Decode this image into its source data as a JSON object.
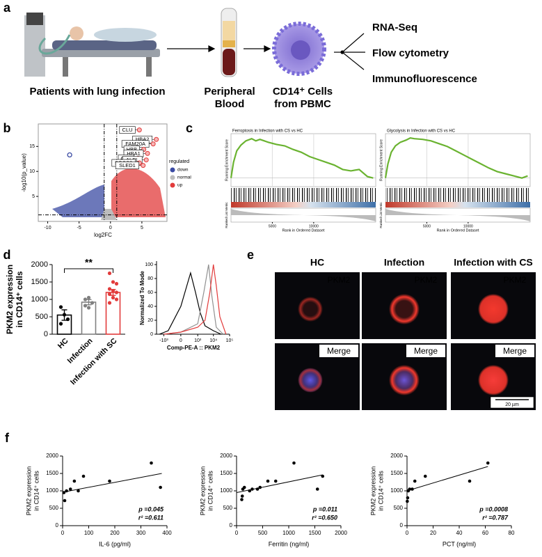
{
  "panel_a": {
    "label": "a",
    "steps": [
      [
        "Patients with lung infection"
      ],
      [
        "Peripheral",
        "Blood"
      ],
      [
        "CD14⁺ Cells",
        "from PBMC"
      ]
    ],
    "outputs": [
      "RNA-Seq",
      "Flow cytometry",
      "Immunofluorescence"
    ]
  },
  "volcano": {
    "label": "b",
    "type": "scatter",
    "xlabel": "log2FC",
    "ylabel": "-log10(p_value)",
    "xlim": [
      -11.5,
      9
    ],
    "ylim": [
      0,
      19.5
    ],
    "xticks": [
      -10,
      -5,
      0,
      5
    ],
    "yticks": [
      5,
      10,
      15
    ],
    "thresholds": {
      "x": [
        -1,
        1
      ],
      "y": 1.3
    },
    "legend": {
      "title": "regulated",
      "items": [
        {
          "name": "down",
          "color": "#3b4ba3"
        },
        {
          "name": "normal",
          "color": "#bdbdbd"
        },
        {
          "name": "up",
          "color": "#e23b3b"
        }
      ]
    },
    "genes": [
      {
        "name": "CLU",
        "x": 4.6,
        "y": 18.3
      },
      {
        "name": "HBA2",
        "x": 7.3,
        "y": 16.4
      },
      {
        "name": "FAM20A",
        "x": 6.8,
        "y": 15.5
      },
      {
        "name": "HBB",
        "x": 5.3,
        "y": 14.4
      },
      {
        "name": "HBA1",
        "x": 5.9,
        "y": 13.6
      },
      {
        "name": "ADM",
        "x": 4.4,
        "y": 12.6
      },
      {
        "name": "ALPL",
        "x": 5.7,
        "y": 12.3
      },
      {
        "name": "SOCS3",
        "x": 4.6,
        "y": 11.7
      },
      {
        "name": "SLED1",
        "x": 5.2,
        "y": 11.2
      }
    ],
    "outlier": {
      "x": -6.5,
      "y": 13.3
    }
  },
  "gsea": {
    "label": "c",
    "type": "line",
    "color": "#6ab330",
    "ylabel": "Running Enrichment Score",
    "y2label": "Ranked List Metric",
    "xlabel": "Rank in Ordered Dataset",
    "xlim": [
      0,
      17500
    ],
    "ylim": [
      -0.12,
      0.62
    ],
    "xticks": [
      5000,
      10000
    ],
    "plots": [
      {
        "title": "Ferroptosis in Infection with CS vs HC",
        "x": [
          0,
          300,
          700,
          1200,
          1800,
          2500,
          3000,
          3500,
          4500,
          5500,
          6500,
          7500,
          8500,
          9500,
          10500,
          11500,
          12500,
          13500,
          14500,
          15500,
          16500,
          17200
        ],
        "y": [
          0,
          0.22,
          0.38,
          0.46,
          0.52,
          0.55,
          0.52,
          0.54,
          0.5,
          0.47,
          0.45,
          0.4,
          0.36,
          0.3,
          0.26,
          0.22,
          0.18,
          0.12,
          0.1,
          0.12,
          0.02,
          0.0
        ]
      },
      {
        "title": "Glycolysis in Infection with CS vs HC",
        "x": [
          0,
          300,
          700,
          1200,
          1800,
          2500,
          3000,
          3500,
          4500,
          5500,
          6500,
          7500,
          8500,
          9500,
          10500,
          11500,
          12500,
          13500,
          14500,
          15500,
          16500,
          17200
        ],
        "y": [
          0,
          0.2,
          0.36,
          0.45,
          0.5,
          0.53,
          0.56,
          0.55,
          0.54,
          0.52,
          0.48,
          0.44,
          0.38,
          0.32,
          0.26,
          0.2,
          0.14,
          0.09,
          0.06,
          0.03,
          0.0,
          0.03
        ]
      }
    ]
  },
  "bar": {
    "label": "d",
    "type": "bar",
    "ylabel": [
      "PKM2 expression",
      "in CD14⁺ cells"
    ],
    "categories": [
      "HC",
      "Infection",
      "Infection with SC"
    ],
    "values": [
      550,
      920,
      1200
    ],
    "errors": [
      150,
      75,
      85
    ],
    "colors": [
      "#000000",
      "#808080",
      "#e23b3b"
    ],
    "points": [
      [
        780,
        560,
        430,
        300
      ],
      [
        1000,
        1050,
        900,
        820,
        760
      ],
      [
        1750,
        1500,
        1450,
        1300,
        1250,
        1200,
        1150,
        1050,
        1000,
        900
      ]
    ],
    "ylim": [
      0,
      2000
    ],
    "yticks": [
      0,
      500,
      1000,
      1500,
      2000
    ],
    "significance": "**"
  },
  "histogram": {
    "type": "line",
    "xlabel": "Comp-PE-A :: PKM2",
    "ylabel": "Normalized To Mode",
    "xlim": [
      -3000,
      100000
    ],
    "ylim": [
      0,
      105
    ],
    "yticks": [
      0,
      20,
      40,
      60,
      80,
      100
    ],
    "xticks": [
      {
        "value": -1000,
        "label": "-10³"
      },
      0,
      {
        "value": 1000,
        "label": "10³"
      },
      {
        "value": 10000,
        "label": "10⁴"
      },
      {
        "value": 100000,
        "label": "10⁵"
      }
    ],
    "series": [
      {
        "color": "#000000",
        "x": [
          -2000,
          -500,
          0,
          300,
          700,
          1500,
          3000,
          10000,
          30000
        ],
        "y": [
          0,
          5,
          40,
          88,
          60,
          30,
          12,
          5,
          0
        ]
      },
      {
        "color": "#909090",
        "x": [
          -1000,
          0,
          1000,
          2500,
          5000,
          8000,
          15000,
          40000
        ],
        "y": [
          0,
          3,
          15,
          60,
          100,
          55,
          10,
          0
        ]
      },
      {
        "color": "#e23b3b",
        "x": [
          -1000,
          0,
          1000,
          3000,
          6000,
          10000,
          15000,
          25000,
          60000
        ],
        "y": [
          0,
          3,
          10,
          20,
          60,
          100,
          70,
          25,
          0
        ]
      }
    ]
  },
  "images": {
    "label": "e",
    "columns": [
      "HC",
      "Infection",
      "Infection with CS"
    ],
    "rows": [
      "PKM2",
      "Merge"
    ],
    "scale_bar": "20 µm"
  },
  "correlations": {
    "label": "f",
    "type": "scatter",
    "ylabel": [
      "PKM2 expression",
      "in CD14⁺ cells"
    ],
    "ylim": [
      0,
      2000
    ],
    "yticks": [
      0,
      500,
      1000,
      1500,
      2000
    ],
    "plots": [
      {
        "xlabel": "IL-6 (pg/ml)",
        "xlim": [
          0,
          400
        ],
        "xticks": [
          0,
          100,
          200,
          300,
          400
        ],
        "x": [
          5,
          8,
          15,
          30,
          45,
          60,
          80,
          180,
          340,
          375
        ],
        "y": [
          950,
          720,
          1000,
          1050,
          1280,
          1000,
          1420,
          1280,
          1800,
          1100
        ],
        "fit": {
          "x": [
            0,
            380
          ],
          "y": [
            960,
            1500
          ]
        },
        "p": "p =0.045",
        "r2": "r² =0.611"
      },
      {
        "xlabel": "Ferritin (ng/ml)",
        "xlim": [
          0,
          2000
        ],
        "xticks": [
          0,
          500,
          1000,
          1500,
          2000
        ],
        "x": [
          100,
          110,
          120,
          150,
          250,
          300,
          400,
          450,
          600,
          750,
          1100,
          1550,
          1650
        ],
        "y": [
          750,
          850,
          1050,
          1100,
          1000,
          1050,
          1050,
          1100,
          1280,
          1280,
          1800,
          1050,
          1420
        ],
        "fit": {
          "x": [
            0,
            1650
          ],
          "y": [
            950,
            1460
          ]
        },
        "p": "p =0.011",
        "r2": "r² =0.650"
      },
      {
        "xlabel": "PCT (ng/ml)",
        "xlim": [
          0,
          80
        ],
        "xticks": [
          0,
          20,
          40,
          60,
          80
        ],
        "x": [
          0.2,
          0.5,
          1,
          2,
          4,
          6,
          14,
          48,
          62
        ],
        "y": [
          700,
          800,
          1000,
          1050,
          1050,
          1280,
          1420,
          1280,
          1800
        ],
        "fit": {
          "x": [
            0,
            62
          ],
          "y": [
            1000,
            1700
          ]
        },
        "p": "p =0.0008",
        "r2": "r² =0.787"
      }
    ]
  }
}
